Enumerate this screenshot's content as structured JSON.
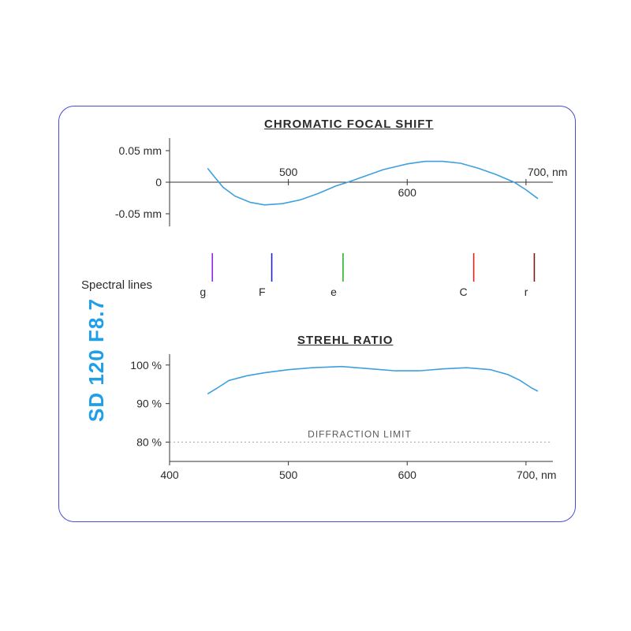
{
  "side_label": "SD 120 F8.7",
  "accent_color": "#1e9fe8",
  "border_color": "#4a4ad8",
  "line_color": "#3da0de",
  "chromatic": {
    "title": "CHROMATIC FOCAL SHIFT",
    "title_fontsize": 15,
    "xlim": [
      400,
      720
    ],
    "ylim": [
      -0.065,
      0.065
    ],
    "ytick_labels": [
      "-0.05 mm",
      "0",
      "0.05 mm"
    ],
    "ytick_vals": [
      -0.05,
      0,
      0.05
    ],
    "xtick_vals": [
      500,
      600
    ],
    "xtick_labels": [
      "500",
      "600"
    ],
    "x_axis_end_label": "700, nm",
    "axis_color": "#333333",
    "curve": [
      [
        432,
        0.022
      ],
      [
        438,
        0.008
      ],
      [
        445,
        -0.008
      ],
      [
        455,
        -0.022
      ],
      [
        468,
        -0.032
      ],
      [
        480,
        -0.036
      ],
      [
        495,
        -0.034
      ],
      [
        510,
        -0.028
      ],
      [
        525,
        -0.018
      ],
      [
        540,
        -0.006
      ],
      [
        550,
        0.0
      ],
      [
        565,
        0.01
      ],
      [
        580,
        0.02
      ],
      [
        600,
        0.029
      ],
      [
        615,
        0.033
      ],
      [
        630,
        0.033
      ],
      [
        645,
        0.03
      ],
      [
        660,
        0.022
      ],
      [
        675,
        0.012
      ],
      [
        690,
        0.0
      ],
      [
        700,
        -0.012
      ],
      [
        710,
        -0.026
      ]
    ],
    "curve_color": "#3da0de",
    "curve_width": 1.6
  },
  "spectral": {
    "label": "Spectral lines",
    "lines": [
      {
        "wavelength": 436,
        "label": "g",
        "color": "#8a2be2"
      },
      {
        "wavelength": 486,
        "label": "F",
        "color": "#2222cc"
      },
      {
        "wavelength": 546,
        "label": "e",
        "color": "#22b822"
      },
      {
        "wavelength": 656,
        "label": "C",
        "color": "#e02222"
      },
      {
        "wavelength": 707,
        "label": "r",
        "color": "#7a1b1b"
      }
    ],
    "line_height": 36,
    "line_width": 1.6,
    "label_fontsize": 14
  },
  "strehl": {
    "title": "STREHL RATIO",
    "title_fontsize": 15,
    "xlim": [
      400,
      720
    ],
    "ylim": [
      75,
      102
    ],
    "ytick_vals": [
      80,
      90,
      100
    ],
    "ytick_labels": [
      "80 %",
      "90 %",
      "100 %"
    ],
    "xtick_vals": [
      400,
      500,
      600,
      700
    ],
    "xtick_labels": [
      "400",
      "500",
      "600",
      "700"
    ],
    "x_axis_end_label": "700, nm",
    "diffraction_limit": 80,
    "diffraction_label": "DIFFRACTION LIMIT",
    "axis_color": "#333333",
    "grid_dash": "2,3",
    "curve": [
      [
        432,
        92.5
      ],
      [
        440,
        94.0
      ],
      [
        450,
        96.0
      ],
      [
        465,
        97.2
      ],
      [
        480,
        98.0
      ],
      [
        500,
        98.8
      ],
      [
        520,
        99.3
      ],
      [
        545,
        99.6
      ],
      [
        570,
        99.0
      ],
      [
        590,
        98.5
      ],
      [
        610,
        98.5
      ],
      [
        630,
        99.0
      ],
      [
        650,
        99.3
      ],
      [
        670,
        98.8
      ],
      [
        685,
        97.5
      ],
      [
        695,
        96.0
      ],
      [
        705,
        94.0
      ],
      [
        710,
        93.2
      ]
    ],
    "curve_color": "#3da0de",
    "curve_width": 1.6
  }
}
